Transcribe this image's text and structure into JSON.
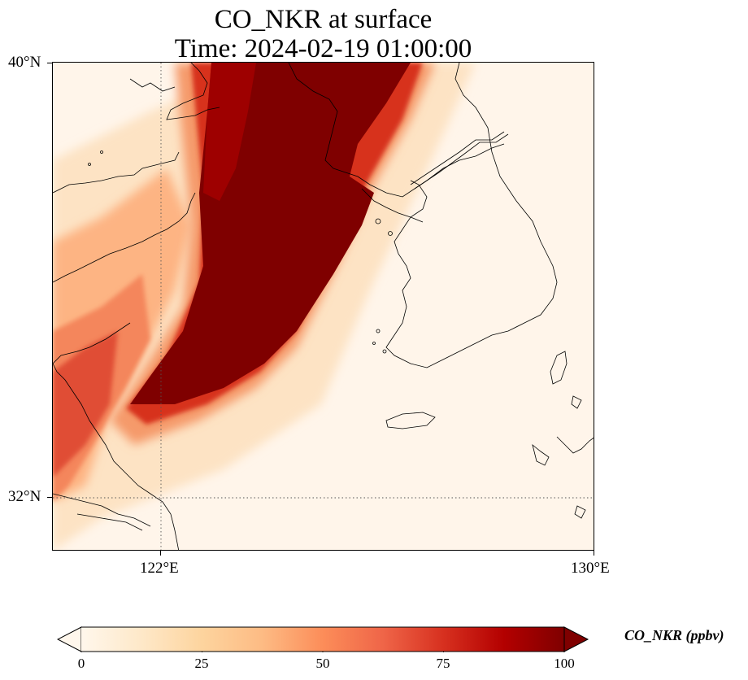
{
  "title": {
    "line1": "CO_NKR at surface",
    "line2": "Time: 2024-02-19 01:00:00"
  },
  "map": {
    "lat_labels": [
      "40°N",
      "32°N"
    ],
    "lon_labels": [
      "122°E",
      "130°E"
    ],
    "extent": {
      "lon": [
        120,
        130
      ],
      "lat": [
        31,
        40
      ]
    },
    "gridlines": {
      "lon": 122,
      "lat": 32,
      "style": "dotted"
    },
    "field": "CO_NKR",
    "plume_description_color_high": "#7f0000",
    "colormap": "OrRd"
  },
  "colorbar": {
    "label": "CO_NKR (ppbv)",
    "ticks": [
      "0",
      "25",
      "50",
      "75",
      "100"
    ],
    "range": [
      0,
      100
    ],
    "extend": "both",
    "colors": [
      "#fff7ec",
      "#fee8c8",
      "#fdd49e",
      "#fdbb84",
      "#fc8d59",
      "#ef6548",
      "#d7301f",
      "#b30000",
      "#7f0000"
    ]
  }
}
